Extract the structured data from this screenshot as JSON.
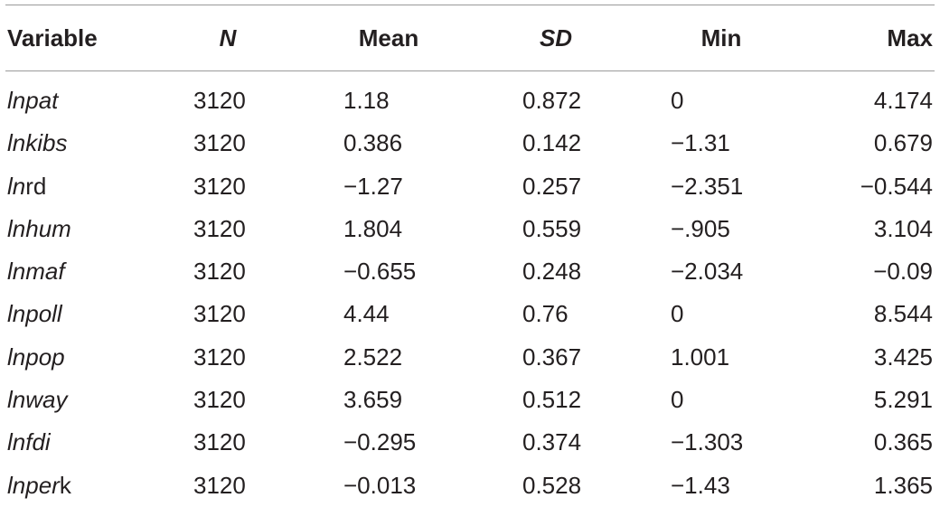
{
  "table": {
    "headers": {
      "variable": "Variable",
      "n": "N",
      "mean": "Mean",
      "sd": "SD",
      "min": "Min",
      "max": "Max"
    },
    "rows": [
      {
        "variable": "lnpat",
        "n": "3120",
        "mean": "1.18",
        "sd": "0.872",
        "min": "0",
        "max": "4.174"
      },
      {
        "variable": "lnkibs",
        "n": "3120",
        "mean": "0.386",
        "sd": "0.142",
        "min": "−1.31",
        "max": "0.679"
      },
      {
        "variable": "lnrd",
        "n": "3120",
        "mean": "−1.27",
        "sd": "0.257",
        "min": "−2.351",
        "max": "−0.544"
      },
      {
        "variable": "lnhum",
        "n": "3120",
        "mean": "1.804",
        "sd": "0.559",
        "min": "−.905",
        "max": "3.104"
      },
      {
        "variable": "lnmaf",
        "n": "3120",
        "mean": "−0.655",
        "sd": "0.248",
        "min": "−2.034",
        "max": "−0.09"
      },
      {
        "variable": "lnpoll",
        "n": "3120",
        "mean": "4.44",
        "sd": "0.76",
        "min": "0",
        "max": "8.544"
      },
      {
        "variable": "lnpop",
        "n": "3120",
        "mean": "2.522",
        "sd": "0.367",
        "min": "1.001",
        "max": "3.425"
      },
      {
        "variable": "lnway",
        "n": "3120",
        "mean": "3.659",
        "sd": "0.512",
        "min": "0",
        "max": "5.291"
      },
      {
        "variable": "lnfdi",
        "n": "3120",
        "mean": "−0.295",
        "sd": "0.374",
        "min": "−1.303",
        "max": "0.365"
      },
      {
        "variable": "lnperk",
        "n": "3120",
        "mean": "−0.013",
        "sd": "0.528",
        "min": "−1.43",
        "max": "1.365"
      }
    ]
  }
}
